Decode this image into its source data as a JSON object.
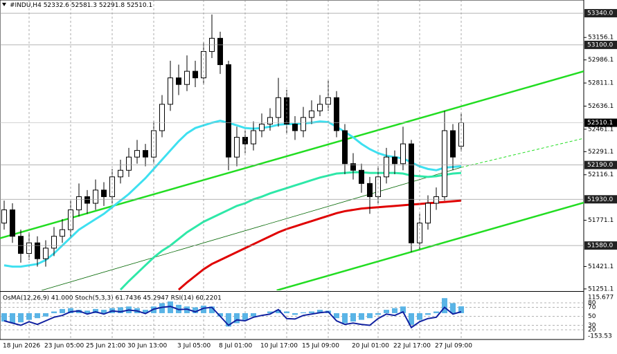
{
  "chart_data": {
    "type": "candlestick",
    "symbol": "#INDU,H4",
    "categories": [
      null,
      null,
      null,
      "18 Jun 2026",
      null,
      null,
      null,
      null,
      "23 Jun 05:00",
      null,
      null,
      null,
      null,
      "25 Jun 21:00",
      null,
      null,
      null,
      null,
      "30 Jun 13:00",
      null,
      null,
      null,
      null,
      null,
      "3 Jul 05:00",
      null,
      null,
      null,
      null,
      "8 Jul 01:00",
      null,
      null,
      null,
      null,
      "10 Jul 17:00",
      null,
      null,
      null,
      null,
      "15 Jul 09:00",
      null,
      null,
      null,
      null,
      null,
      "20 Jul 01:00",
      null,
      null,
      null,
      null,
      "22 Jul 17:00",
      null,
      null,
      null,
      null,
      "27 Jul 09:00"
    ],
    "open": [
      51750,
      51850,
      51650,
      51520,
      51600,
      51480,
      51560,
      51650,
      51700,
      51850,
      51950,
      51900,
      52000,
      51950,
      52100,
      52150,
      52250,
      52300,
      52250,
      52450,
      52650,
      52850,
      52800,
      52900,
      52850,
      53050,
      53150,
      52950,
      52250,
      52400,
      52350,
      52450,
      52500,
      52550,
      52700,
      52500,
      52450,
      52550,
      52600,
      52650,
      52700,
      52450,
      52200,
      52150,
      52050,
      51950,
      52100,
      52250,
      52200,
      52350,
      51600,
      51750,
      51900,
      51950,
      52450,
      52332.6
    ],
    "high": [
      51920,
      51900,
      51700,
      51680,
      51650,
      51620,
      51720,
      51780,
      51920,
      52050,
      52000,
      52080,
      52060,
      52160,
      52230,
      52320,
      52380,
      52350,
      52520,
      52720,
      52980,
      52950,
      53020,
      52980,
      53120,
      53330,
      53200,
      52980,
      52480,
      52450,
      52520,
      52580,
      52620,
      52850,
      52760,
      52560,
      52630,
      52680,
      52720,
      52830,
      52750,
      52500,
      52280,
      52200,
      52100,
      52180,
      52320,
      52300,
      52480,
      52380,
      51820,
      51960,
      52020,
      52600,
      52500,
      52581.3
    ],
    "low": [
      51700,
      51600,
      51450,
      51470,
      51420,
      51420,
      51500,
      51600,
      51650,
      51800,
      51820,
      51850,
      51880,
      51900,
      52050,
      52100,
      52200,
      52180,
      52200,
      52400,
      52600,
      52720,
      52750,
      52780,
      52800,
      53000,
      52880,
      52150,
      52180,
      52280,
      52300,
      52400,
      52450,
      52480,
      52430,
      52380,
      52400,
      52500,
      52560,
      52600,
      52400,
      52120,
      52080,
      51980,
      51820,
      51900,
      52050,
      52120,
      52150,
      51530,
      51550,
      51700,
      51850,
      51920,
      52150,
      52291.8
    ],
    "close": [
      51850,
      51650,
      51520,
      51600,
      51480,
      51560,
      51650,
      51700,
      51850,
      51950,
      51900,
      52000,
      51950,
      52100,
      52150,
      52250,
      52300,
      52250,
      52450,
      52650,
      52850,
      52800,
      52900,
      52850,
      53050,
      53150,
      52950,
      52250,
      52400,
      52350,
      52450,
      52500,
      52550,
      52700,
      52500,
      52450,
      52550,
      52600,
      52650,
      52700,
      52450,
      52200,
      52150,
      52050,
      51950,
      52100,
      52250,
      52200,
      52350,
      51600,
      51750,
      51900,
      51950,
      52450,
      52250,
      52510.1
    ],
    "bull_color": "#ffffff",
    "bear_color": "#000000",
    "ylim": [
      51240,
      53440
    ],
    "yticks": [
      53156.1,
      52986.1,
      52811.1,
      52636.1,
      52461.1,
      52291.1,
      52116.1,
      51771.1,
      51421.1,
      51251.1
    ],
    "levels": [
      {
        "value": 53340,
        "label": "53340.0"
      },
      {
        "value": 53100,
        "label": "53100.0"
      },
      {
        "value": 52190,
        "label": "52190.0"
      },
      {
        "value": 51930,
        "label": "51930.0"
      },
      {
        "value": 51580,
        "label": "51580.0"
      }
    ],
    "moving_averages": [
      {
        "color": "#3ee0f0",
        "values": [
          51430,
          51420,
          51420,
          51430,
          51440,
          51470,
          51520,
          51580,
          51640,
          51700,
          51740,
          51780,
          51820,
          51870,
          51920,
          51970,
          52030,
          52090,
          52160,
          52230,
          52300,
          52370,
          52430,
          52470,
          52490,
          52510,
          52525,
          52510,
          52490,
          52470,
          52465,
          52470,
          52480,
          52495,
          52500,
          52500,
          52505,
          52510,
          52520,
          52515,
          52480,
          52440,
          52400,
          52350,
          52310,
          52280,
          52260,
          52250,
          52240,
          52210,
          52180,
          52160,
          52150,
          52170,
          52175,
          52180
        ]
      },
      {
        "color": "#2ee8a8",
        "values": [
          null,
          null,
          null,
          null,
          null,
          null,
          null,
          null,
          null,
          null,
          null,
          null,
          null,
          null,
          51245,
          51310,
          51370,
          51430,
          51490,
          51540,
          51580,
          51630,
          51680,
          51720,
          51760,
          51790,
          51820,
          51850,
          51880,
          51900,
          51930,
          51950,
          51975,
          51995,
          52015,
          52035,
          52055,
          52075,
          52095,
          52110,
          52125,
          52130,
          52135,
          52135,
          52130,
          52130,
          52130,
          52130,
          52125,
          52110,
          52105,
          52100,
          52105,
          52115,
          52125,
          52130
        ]
      },
      {
        "color": "#e00000",
        "values": [
          null,
          null,
          null,
          null,
          null,
          null,
          null,
          null,
          null,
          null,
          null,
          null,
          null,
          null,
          null,
          null,
          null,
          null,
          null,
          null,
          null,
          51245,
          51300,
          51350,
          51400,
          51440,
          51470,
          51500,
          51530,
          51560,
          51590,
          51620,
          51650,
          51680,
          51705,
          51725,
          51745,
          51765,
          51785,
          51805,
          51825,
          51840,
          51850,
          51860,
          51865,
          51870,
          51875,
          51880,
          51885,
          51890,
          51895,
          51900,
          51905,
          51910,
          51915,
          51920
        ]
      }
    ],
    "trendlines": [
      {
        "color": "#22dd22",
        "width": 2.5,
        "dashed": false,
        "points": [
          [
            -0.5,
            51635
          ],
          [
            69.75,
            52900
          ]
        ]
      },
      {
        "color": "#22dd22",
        "width": 2.5,
        "dashed": false,
        "points": [
          [
            32.8,
            51240
          ],
          [
            69.75,
            51905
          ]
        ]
      },
      {
        "color": "#006600",
        "width": 0.8,
        "dashed": false,
        "points": [
          [
            4.5,
            51240
          ],
          [
            55,
            52172
          ]
        ]
      },
      {
        "color": "#22dd22",
        "width": 1,
        "dashed": true,
        "points": [
          [
            55,
            52172
          ],
          [
            69.75,
            52392
          ]
        ]
      }
    ],
    "indicator": {
      "title": "OsMA(12,26,9) 41.000  Stoch(5,3,3) 61.7436 45.2947  RSI(14) 60.2201",
      "osma": {
        "color": "#5ab4e6",
        "lim": [
          -153.53,
          115.677
        ],
        "values": [
          -50,
          -60,
          -55,
          -40,
          -30,
          -20,
          10,
          25,
          30,
          20,
          15,
          25,
          20,
          30,
          35,
          40,
          30,
          20,
          40,
          60,
          70,
          50,
          40,
          35,
          45,
          40,
          -20,
          -80,
          -60,
          -40,
          -20,
          0,
          10,
          20,
          10,
          -10,
          5,
          10,
          20,
          15,
          -30,
          -60,
          -50,
          -40,
          -30,
          -10,
          20,
          30,
          40,
          -70,
          -40,
          -10,
          10,
          90,
          60,
          41
        ]
      },
      "rsi": {
        "color": "#1020a0",
        "values": [
          40,
          35,
          30,
          38,
          32,
          40,
          48,
          52,
          60,
          62,
          55,
          60,
          55,
          62,
          60,
          64,
          62,
          56,
          66,
          70,
          72,
          65,
          66,
          60,
          68,
          70,
          50,
          30,
          42,
          40,
          48,
          52,
          55,
          65,
          45,
          44,
          52,
          55,
          58,
          60,
          40,
          32,
          35,
          32,
          30,
          45,
          55,
          52,
          60,
          25,
          38,
          45,
          48,
          70,
          55,
          60.2201
        ]
      },
      "lim": [
        0,
        100
      ],
      "levels": [
        80,
        70,
        50,
        30,
        20
      ]
    }
  }
}
